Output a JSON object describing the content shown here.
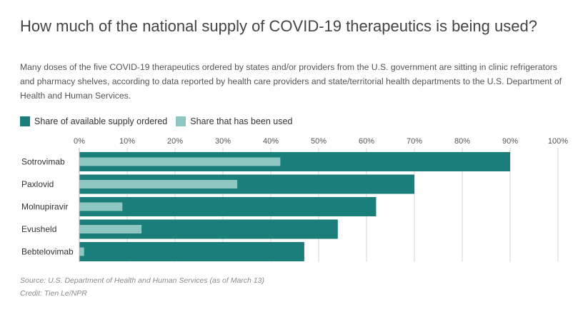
{
  "header": {
    "title": "How much of the national supply of COVID-19 therapeutics is being used?",
    "subtitle": "Many doses of the five COVID-19 therapeutics ordered by states and/or providers from the U.S. government are sitting in clinic refrigerators and pharmacy shelves, according to data reported by health care providers and state/territorial health departments to the U.S. Department of Health and Human Services."
  },
  "colors": {
    "ordered": "#1a7f7a",
    "used": "#8ec6c2",
    "grid": "#d6d6d6"
  },
  "footer": {
    "source": "Source: U.S. Department of Health and Human Services (as of March 13)",
    "credit": "Credit: Tien Le/NPR"
  },
  "chart_data": {
    "type": "bar",
    "orientation": "horizontal",
    "categories": [
      "Sotrovimab",
      "Paxlovid",
      "Molnupiravir",
      "Evusheld",
      "Bebtelovimab"
    ],
    "series": [
      {
        "name": "Share of available supply ordered",
        "values": [
          90,
          70,
          62,
          54,
          47
        ]
      },
      {
        "name": "Share that has been used",
        "values": [
          42,
          33,
          9,
          13,
          1
        ]
      }
    ],
    "xlim": [
      0,
      100
    ],
    "xticks": [
      "0%",
      "10%",
      "20%",
      "30%",
      "40%",
      "50%",
      "60%",
      "70%",
      "80%",
      "90%",
      "100%"
    ],
    "grid": true,
    "legend": "top-left"
  }
}
